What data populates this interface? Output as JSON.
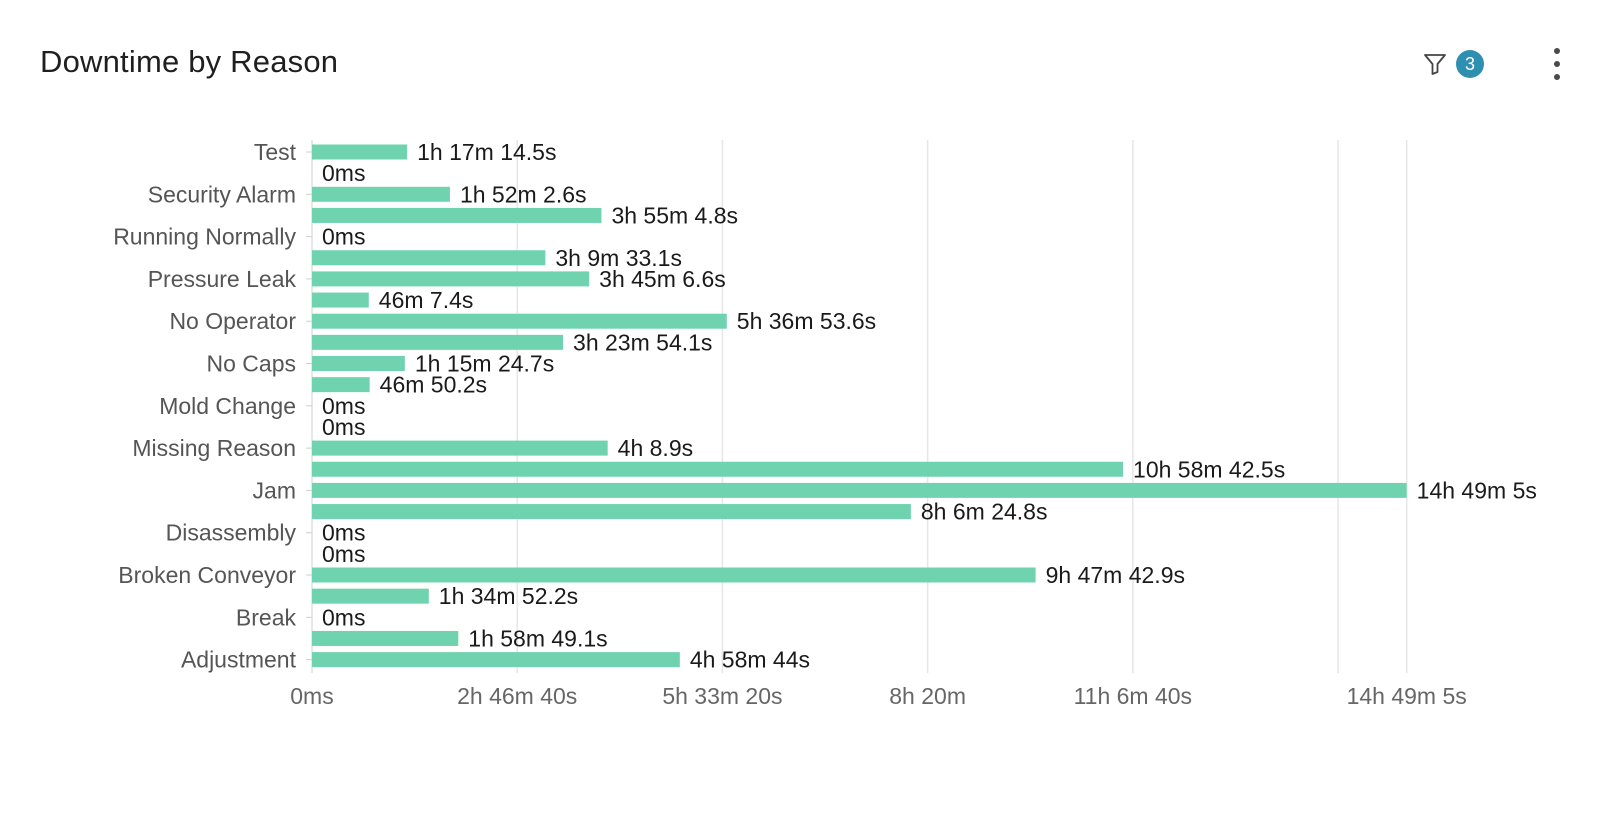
{
  "header": {
    "title": "Downtime by Reason",
    "filter_count": "3",
    "filter_icon": "filter-icon",
    "menu_icon": "kebab-menu-icon"
  },
  "colors": {
    "bar": "#6fd3b0",
    "badge": "#2e8fb0",
    "grid": "#e6e6e6",
    "axis": "#cfcfcf"
  },
  "chart_data": {
    "type": "bar",
    "orientation": "horizontal",
    "title": "Downtime by Reason",
    "xlabel": "",
    "ylabel": "",
    "grid": true,
    "legend": "none",
    "x_unit": "seconds",
    "xlim": [
      0,
      57600
    ],
    "x_ticks": [
      {
        "value": 0,
        "label": "0ms"
      },
      {
        "value": 10000,
        "label": "2h 46m 40s"
      },
      {
        "value": 20000,
        "label": "5h 33m 20s"
      },
      {
        "value": 30000,
        "label": "8h 20m"
      },
      {
        "value": 40000,
        "label": "11h 6m 40s"
      },
      {
        "value": 53345,
        "label": "14h 49m 5s"
      }
    ],
    "category_labels": [
      "Test",
      "Security Alarm",
      "Running Normally",
      "Pressure Leak",
      "No Operator",
      "No Caps",
      "Mold Change",
      "Missing Reason",
      "Jam",
      "Disassembly",
      "Broken Conveyor",
      "Break",
      "Adjustment"
    ],
    "bars": [
      {
        "value": 4634.5,
        "label": "1h 17m 14.5s"
      },
      {
        "value": 0,
        "label": "0ms"
      },
      {
        "value": 6722.6,
        "label": "1h 52m 2.6s"
      },
      {
        "value": 14104.8,
        "label": "3h 55m 4.8s"
      },
      {
        "value": 0,
        "label": "0ms"
      },
      {
        "value": 11373.1,
        "label": "3h 9m 33.1s"
      },
      {
        "value": 13506.6,
        "label": "3h 45m 6.6s"
      },
      {
        "value": 2767.4,
        "label": "46m 7.4s"
      },
      {
        "value": 20213.6,
        "label": "5h 36m 53.6s"
      },
      {
        "value": 12234.1,
        "label": "3h 23m 54.1s"
      },
      {
        "value": 4524.7,
        "label": "1h 15m 24.7s"
      },
      {
        "value": 2810.2,
        "label": "46m 50.2s"
      },
      {
        "value": 0,
        "label": "0ms"
      },
      {
        "value": 0,
        "label": "0ms"
      },
      {
        "value": 14408.9,
        "label": "4h 8.9s"
      },
      {
        "value": 39522.5,
        "label": "10h 58m 42.5s"
      },
      {
        "value": 53345,
        "label": "14h 49m 5s"
      },
      {
        "value": 29184.8,
        "label": "8h 6m 24.8s"
      },
      {
        "value": 0,
        "label": "0ms"
      },
      {
        "value": 0,
        "label": "0ms"
      },
      {
        "value": 35262.9,
        "label": "9h 47m 42.9s"
      },
      {
        "value": 5692.2,
        "label": "1h 34m 52.2s"
      },
      {
        "value": 0,
        "label": "0ms"
      },
      {
        "value": 7129.1,
        "label": "1h 58m 49.1s"
      },
      {
        "value": 17924,
        "label": "4h 58m 44s"
      }
    ]
  }
}
